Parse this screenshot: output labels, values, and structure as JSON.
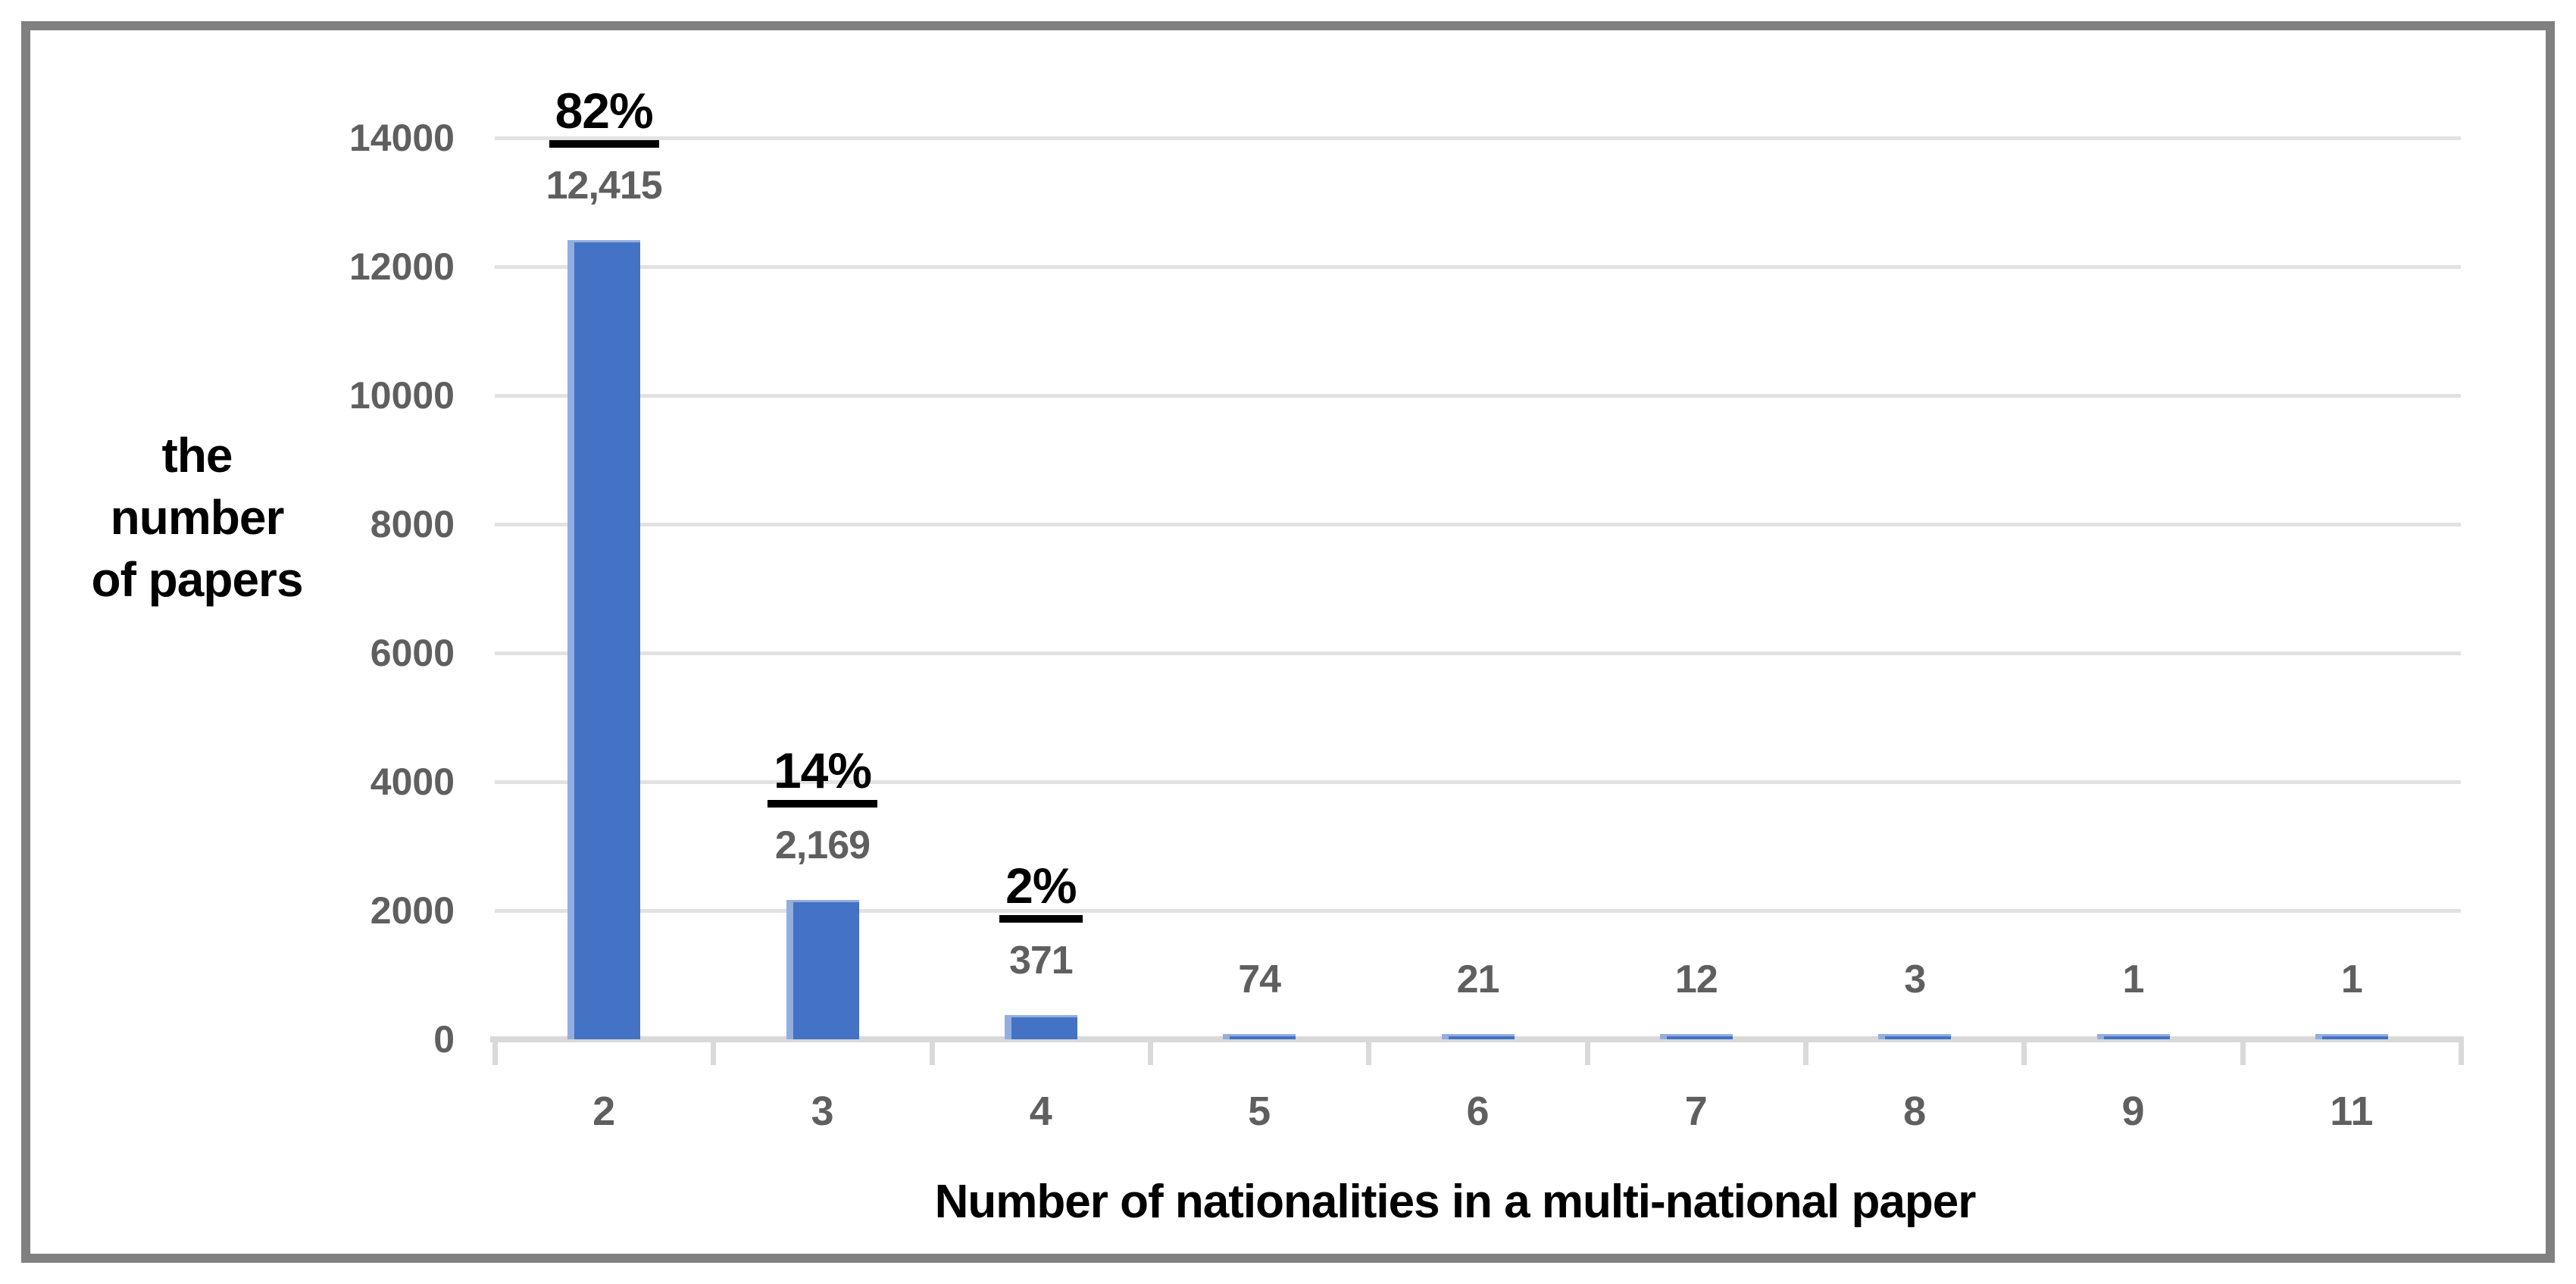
{
  "chart_data": {
    "type": "bar",
    "title": "",
    "categories": [
      "2",
      "3",
      "4",
      "5",
      "6",
      "7",
      "8",
      "9",
      "11"
    ],
    "values": [
      12415,
      2169,
      371,
      74,
      21,
      12,
      3,
      1,
      1
    ],
    "value_labels": [
      "12,415",
      "2,169",
      "371",
      "74",
      "21",
      "12",
      "3",
      "1",
      "1"
    ],
    "pct_labels": [
      "82%",
      "14%",
      "2%",
      "",
      "",
      "",
      "",
      "",
      ""
    ],
    "xlabel": "Number of nationalities in a multi-national paper",
    "ylabel": "the number of papers",
    "ylabel_lines": [
      "the",
      "number",
      "of papers"
    ],
    "ylim": [
      0,
      14000
    ],
    "ytick_interval": 2000,
    "yticks": [
      "0",
      "2000",
      "4000",
      "6000",
      "8000",
      "10000",
      "12000",
      "14000"
    ],
    "grid": true,
    "legend": "none",
    "colors": {
      "bar_fill": "#4472C4",
      "bar_edge_light": "#93AEDE",
      "gridline": "#E2E2E2",
      "axis_line": "#D9D9D9",
      "tick_label": "#5f5f5f",
      "annotation": "#000000",
      "frame_border": "#808080",
      "background": "#ffffff"
    }
  }
}
